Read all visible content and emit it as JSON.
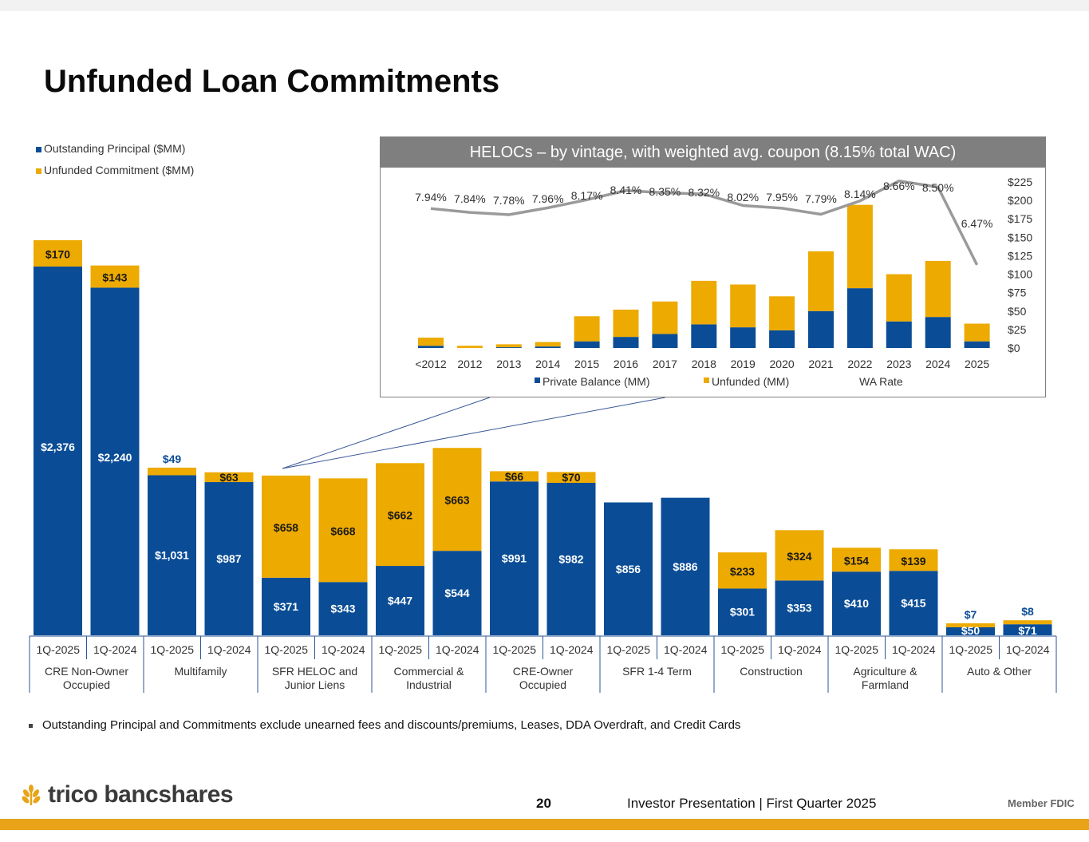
{
  "page": {
    "title": "Unfunded Loan Commitments",
    "footnote": "Outstanding Principal and Commitments exclude unearned fees and discounts/premiums, Leases, DDA Overdraft, and Credit Cards",
    "page_number": "20",
    "footer_text": "Investor Presentation | First Quarter 2025",
    "member_fdic": "Member FDIC",
    "logo_text": "trico bancshares"
  },
  "colors": {
    "blue": "#0a4d96",
    "gold": "#edaa00",
    "wa_line": "#9a9a9a",
    "inset_header": "#7f7f7f",
    "brand_orange": "#e8a318"
  },
  "chart_data": [
    {
      "type": "bar",
      "stacked": true,
      "legend": [
        "Outstanding Principal ($MM)",
        "Unfunded Commitment ($MM)"
      ],
      "legend_position": "top-left",
      "groups": [
        "CRE Non-Owner Occupied",
        "Multifamily",
        "SFR HELOC and Junior Liens",
        "Commercial & Industrial",
        "CRE-Owner Occupied",
        "SFR 1-4 Term",
        "Construction",
        "Agriculture & Farmland",
        "Auto & Other"
      ],
      "periods": [
        "1Q-2025",
        "1Q-2024"
      ],
      "series": [
        {
          "name": "Outstanding Principal ($MM)",
          "values": [
            2376,
            2240,
            1031,
            987,
            371,
            343,
            447,
            544,
            991,
            982,
            856,
            886,
            301,
            353,
            410,
            415,
            50,
            71
          ],
          "labels": [
            "$2,376",
            "$2,240",
            "$1,031",
            "$987",
            "$371",
            "$343",
            "$447",
            "$544",
            "$991",
            "$982",
            "$856",
            "$886",
            "$301",
            "$353",
            "$410",
            "$415",
            "$50",
            "$71"
          ]
        },
        {
          "name": "Unfunded Commitment ($MM)",
          "values": [
            170,
            143,
            49,
            63,
            658,
            668,
            662,
            663,
            66,
            70,
            0,
            0,
            233,
            324,
            154,
            139,
            7,
            8
          ],
          "labels": [
            "$170",
            "$143",
            "$49",
            "$63",
            "$658",
            "$668",
            "$662",
            "$663",
            "$66",
            "$70",
            "",
            "",
            "$233",
            "$324",
            "$154",
            "$139",
            "$7",
            "$8"
          ]
        }
      ]
    },
    {
      "type": "bar",
      "stacked": true,
      "title": "HELOCs – by vintage, with weighted avg. coupon (8.15% total WAC)",
      "categories": [
        "<2012",
        "2012",
        "2013",
        "2014",
        "2015",
        "2016",
        "2017",
        "2018",
        "2019",
        "2020",
        "2021",
        "2022",
        "2023",
        "2024",
        "2025"
      ],
      "series": [
        {
          "name": "Private Balance (MM)",
          "values": [
            3,
            0,
            1,
            2,
            9,
            15,
            19,
            32,
            28,
            24,
            50,
            81,
            36,
            42,
            9
          ]
        },
        {
          "name": "Unfunded (MM)",
          "values": [
            11,
            3,
            4,
            6,
            34,
            37,
            44,
            59,
            58,
            46,
            81,
            113,
            64,
            76,
            24
          ]
        }
      ],
      "line": {
        "name": "WA Rate",
        "values": [
          7.94,
          7.84,
          7.78,
          7.96,
          8.17,
          8.41,
          8.35,
          8.32,
          8.02,
          7.95,
          7.79,
          8.14,
          8.66,
          8.5,
          6.47
        ],
        "labels": [
          "7.94%",
          "7.84%",
          "7.78%",
          "7.96%",
          "8.17%",
          "8.41%",
          "8.35%",
          "8.32%",
          "8.02%",
          "7.95%",
          "7.79%",
          "8.14%",
          "8.66%",
          "8.50%",
          "6.47%"
        ]
      },
      "y_axis_position": "right",
      "y_ticks": [
        "$0",
        "$25",
        "$50",
        "$75",
        "$100",
        "$125",
        "$150",
        "$175",
        "$200",
        "$225"
      ],
      "ylim": [
        0,
        225
      ],
      "legend_position": "bottom"
    }
  ]
}
